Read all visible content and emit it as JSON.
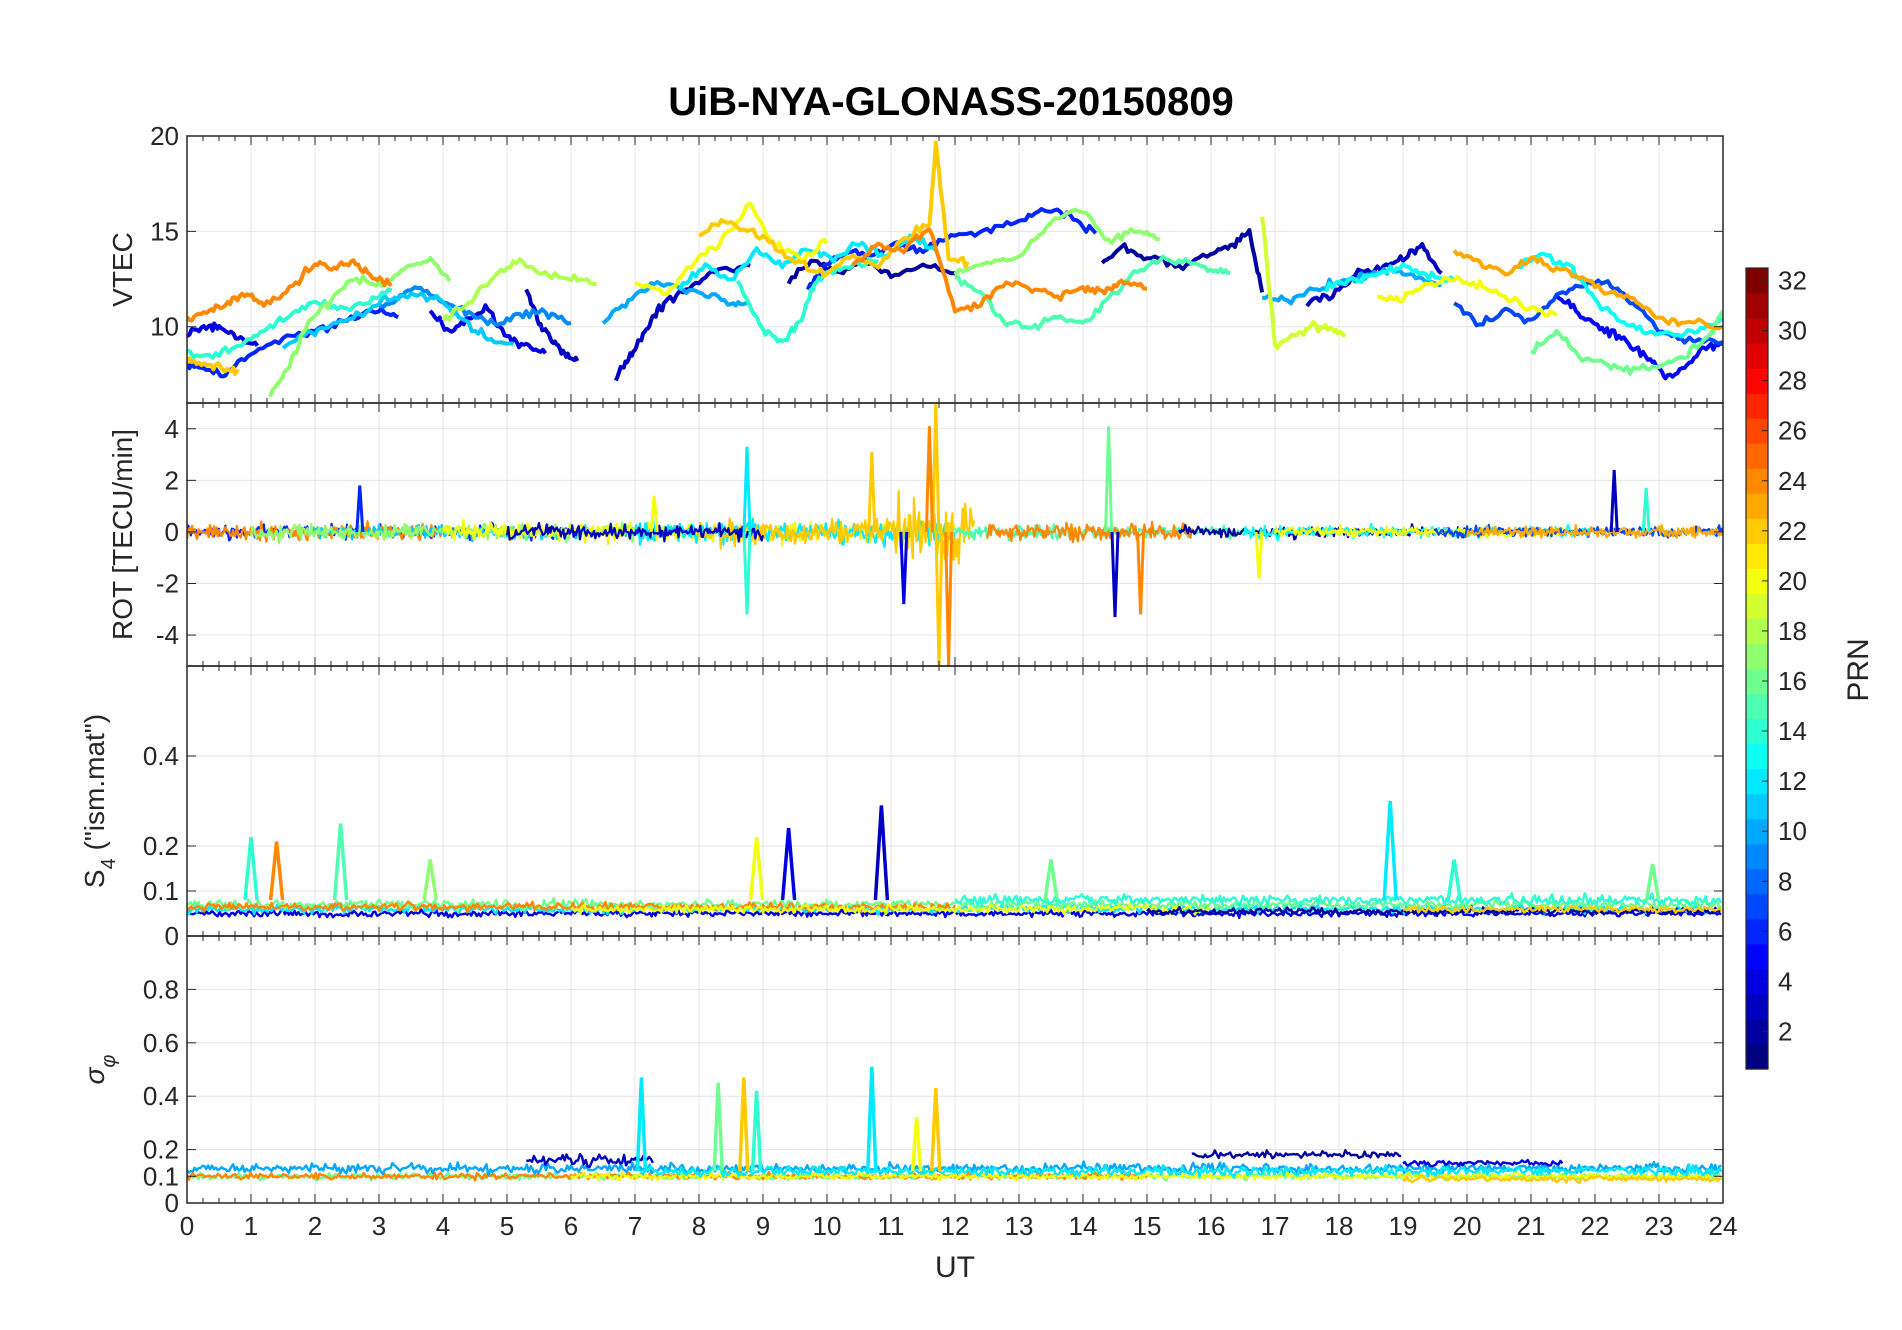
{
  "title": "UiB-NYA-GLONASS-20150809",
  "chart_data": [
    {
      "type": "line",
      "panel": "vtec",
      "ylabel": "VTEC",
      "ylim": [
        6,
        20
      ],
      "yticks": [
        10,
        15,
        20
      ],
      "xlim": [
        0,
        24
      ],
      "grid": true,
      "series": [
        {
          "prn": 2,
          "x": [
            9.4,
            9.8,
            10.2,
            10.6,
            11.0,
            11.5,
            12.0
          ],
          "y": [
            12.5,
            13.5,
            12.8,
            13.5,
            12.6,
            13.2,
            12.8
          ]
        },
        {
          "prn": 2,
          "x": [
            14.3,
            14.6,
            15.0,
            15.5,
            16.0,
            16.3,
            16.6,
            16.8
          ],
          "y": [
            13.2,
            14.2,
            13.6,
            13.2,
            13.9,
            14.2,
            15.0,
            11.8
          ]
        },
        {
          "prn": 3,
          "x": [
            5.3,
            5.5,
            5.7,
            5.9,
            6.1
          ],
          "y": [
            12.0,
            10.2,
            9.3,
            8.6,
            8.2
          ]
        },
        {
          "prn": 3,
          "x": [
            6.7,
            6.9,
            7.1,
            7.3,
            7.5,
            7.9,
            8.3,
            8.8
          ],
          "y": [
            7.4,
            8.3,
            9.4,
            10.6,
            11.3,
            12.2,
            13.0,
            13.2
          ]
        },
        {
          "prn": 3,
          "x": [
            17.5,
            17.9,
            18.3,
            18.7,
            19.0,
            19.3,
            19.6
          ],
          "y": [
            11.2,
            11.6,
            12.8,
            13.1,
            13.6,
            14.2,
            12.8
          ]
        },
        {
          "prn": 4,
          "x": [
            0.0,
            0.3,
            0.5,
            0.8,
            1.1
          ],
          "y": [
            9.7,
            9.9,
            10.1,
            9.5,
            9.0
          ]
        },
        {
          "prn": 4,
          "x": [
            3.8,
            4.1,
            4.4,
            4.7,
            5.0,
            5.3,
            5.6
          ],
          "y": [
            10.8,
            9.7,
            10.4,
            11.0,
            9.4,
            9.0,
            8.6
          ]
        },
        {
          "prn": 5,
          "x": [
            21.4,
            21.7,
            22.0,
            22.3,
            22.6,
            22.9,
            23.1,
            23.4,
            23.7,
            24.0
          ],
          "y": [
            11.6,
            10.8,
            10.2,
            9.6,
            8.9,
            8.2,
            7.3,
            7.9,
            8.8,
            9.1
          ]
        },
        {
          "prn": 6,
          "x": [
            0.0,
            0.3,
            0.6,
            1.0,
            1.5,
            2.0,
            2.5,
            3.0,
            3.3
          ],
          "y": [
            8.0,
            7.8,
            7.5,
            8.6,
            9.4,
            9.8,
            10.4,
            10.8,
            10.5
          ]
        },
        {
          "prn": 6,
          "x": [
            9.7,
            10.0,
            10.3,
            10.7,
            11.1,
            11.5,
            12.0,
            12.5,
            13.0,
            13.4,
            13.8,
            14.2
          ],
          "y": [
            12.0,
            13.3,
            14.0,
            13.6,
            14.3,
            13.9,
            14.8,
            15.0,
            15.5,
            16.2,
            15.8,
            14.9
          ]
        },
        {
          "prn": 7,
          "x": [
            19.8,
            20.2,
            20.6,
            21.0,
            21.4,
            21.8,
            22.2,
            22.6,
            23.0,
            23.4,
            24.0
          ],
          "y": [
            11.2,
            10.1,
            10.8,
            10.4,
            11.6,
            12.2,
            12.4,
            11.2,
            9.8,
            9.4,
            9.2
          ]
        },
        {
          "prn": 9,
          "x": [
            3.0,
            3.3,
            3.6,
            4.0,
            4.4,
            4.8,
            5.2,
            5.6,
            6.0
          ],
          "y": [
            11.0,
            11.5,
            12.1,
            11.3,
            10.8,
            10.1,
            10.6,
            10.8,
            10.2
          ]
        },
        {
          "prn": 10,
          "x": [
            6.5,
            6.9,
            7.3,
            7.7,
            8.1,
            8.5,
            8.8
          ],
          "y": [
            10.3,
            11.4,
            12.3,
            12.0,
            11.8,
            11.2,
            11.3
          ]
        },
        {
          "prn": 10,
          "x": [
            16.8,
            17.2,
            17.6,
            18.0,
            18.4,
            18.8,
            19.2,
            19.6
          ],
          "y": [
            11.6,
            11.3,
            12.0,
            12.3,
            12.6,
            13.0,
            12.6,
            12.2
          ]
        },
        {
          "prn": 11,
          "x": [
            1.5,
            1.9,
            2.3,
            2.7,
            3.1,
            3.5,
            3.9,
            4.3,
            4.7,
            5.1
          ],
          "y": [
            9.0,
            9.6,
            10.1,
            10.6,
            11.4,
            11.7,
            11.5,
            10.4,
            9.4,
            9.1
          ]
        },
        {
          "prn": 12,
          "x": [
            7.7,
            8.1,
            8.5,
            8.9,
            9.3,
            9.7,
            10.1,
            10.5,
            10.9,
            11.3,
            11.7
          ],
          "y": [
            12.0,
            13.2,
            12.4,
            14.0,
            13.2,
            14.1,
            13.5,
            14.4,
            13.6,
            14.8,
            14.0
          ]
        },
        {
          "prn": 13,
          "x": [
            17.8,
            18.2,
            18.6,
            19.0,
            19.4,
            19.8
          ],
          "y": [
            12.0,
            12.4,
            12.8,
            13.2,
            12.7,
            12.4
          ]
        },
        {
          "prn": 13,
          "x": [
            20.8,
            21.2,
            21.6,
            22.0,
            22.4,
            22.8,
            23.2,
            23.6,
            24.0
          ],
          "y": [
            13.1,
            13.8,
            13.2,
            11.4,
            10.2,
            9.8,
            9.6,
            9.8,
            10.4
          ]
        },
        {
          "prn": 14,
          "x": [
            0.0,
            0.4,
            0.8,
            1.2,
            1.6,
            2.0,
            2.4,
            2.8,
            3.2
          ],
          "y": [
            8.7,
            8.4,
            9.0,
            9.8,
            10.5,
            11.4,
            10.9,
            11.2,
            11.9
          ]
        },
        {
          "prn": 14,
          "x": [
            8.6,
            9.0,
            9.3,
            9.6,
            9.8,
            10.0,
            10.4,
            10.8
          ],
          "y": [
            12.3,
            9.8,
            9.2,
            10.4,
            12.2,
            12.8,
            13.2,
            13.4
          ]
        },
        {
          "prn": 15,
          "x": [
            12.0,
            12.4,
            12.8,
            13.2,
            13.6,
            14.0,
            14.4,
            14.8,
            15.2,
            15.6,
            16.0,
            16.3
          ],
          "y": [
            12.6,
            11.8,
            10.2,
            10.0,
            10.6,
            10.2,
            11.4,
            12.8,
            13.6,
            13.4,
            13.0,
            12.8
          ]
        },
        {
          "prn": 16,
          "x": [
            21.0,
            21.4,
            21.8,
            22.2,
            22.6,
            23.0,
            23.4,
            23.8,
            24.0
          ],
          "y": [
            8.6,
            9.8,
            8.4,
            8.0,
            7.7,
            8.0,
            8.4,
            9.6,
            10.8
          ]
        },
        {
          "prn": 17,
          "x": [
            1.3,
            1.6,
            1.9,
            2.2,
            2.6,
            3.0,
            3.4,
            3.8,
            4.1
          ],
          "y": [
            6.4,
            8.0,
            10.3,
            11.2,
            12.6,
            12.1,
            13.0,
            13.6,
            12.4
          ]
        },
        {
          "prn": 17,
          "x": [
            12.0,
            12.5,
            13.0,
            13.5,
            14.0,
            14.4,
            14.8,
            15.2
          ],
          "y": [
            12.8,
            13.4,
            13.6,
            15.6,
            16.2,
            14.4,
            15.0,
            14.6
          ]
        },
        {
          "prn": 18,
          "x": [
            4.0,
            4.4,
            4.8,
            5.2,
            5.6,
            6.0,
            6.4
          ],
          "y": [
            10.3,
            11.2,
            12.6,
            13.4,
            12.7,
            12.6,
            12.2
          ]
        },
        {
          "prn": 19,
          "x": [
            16.8,
            17.0,
            17.3,
            17.6,
            17.9,
            18.1
          ],
          "y": [
            15.9,
            9.0,
            9.5,
            10.1,
            9.9,
            9.6
          ]
        },
        {
          "prn": 20,
          "x": [
            7.0,
            7.5,
            8.0,
            8.4,
            8.8,
            9.2,
            9.6,
            10.0
          ],
          "y": [
            12.2,
            11.8,
            13.6,
            14.6,
            16.4,
            14.2,
            13.6,
            14.4
          ]
        },
        {
          "prn": 20,
          "x": [
            18.6,
            19.0,
            19.4,
            19.8,
            20.2,
            20.6,
            21.0,
            21.4
          ],
          "y": [
            11.4,
            11.6,
            12.2,
            12.6,
            12.1,
            11.6,
            11.0,
            10.6
          ]
        },
        {
          "prn": 22,
          "x": [
            0.0,
            0.3,
            0.6,
            0.8
          ],
          "y": [
            8.2,
            8.0,
            7.8,
            7.6
          ]
        },
        {
          "prn": 22,
          "x": [
            8.0,
            8.4,
            8.8,
            9.2,
            9.6,
            10.0,
            10.4,
            10.8,
            11.2,
            11.6,
            11.7,
            11.9,
            12.2
          ],
          "y": [
            14.8,
            15.6,
            15.0,
            14.2,
            13.2,
            12.8,
            13.8,
            13.2,
            14.6,
            15.4,
            19.6,
            13.6,
            13.4
          ]
        },
        {
          "prn": 23,
          "x": [
            19.8,
            20.2,
            20.6,
            21.0,
            21.4,
            21.8,
            22.2,
            22.6,
            23.0,
            23.4,
            24.0
          ],
          "y": [
            14.0,
            13.4,
            12.8,
            13.6,
            13.0,
            12.6,
            11.8,
            11.4,
            10.4,
            10.2,
            10.0
          ]
        },
        {
          "prn": 24,
          "x": [
            0.0,
            0.3,
            0.6,
            0.9,
            1.2,
            1.6,
            2.0,
            2.3,
            2.6,
            2.9,
            3.2
          ],
          "y": [
            10.4,
            10.8,
            11.1,
            11.8,
            11.2,
            11.9,
            13.3,
            13.1,
            13.4,
            12.6,
            12.2
          ]
        },
        {
          "prn": 24,
          "x": [
            10.4,
            10.8,
            11.2,
            11.6,
            12.0,
            12.4,
            12.8,
            13.2,
            13.6,
            14.0,
            14.3,
            14.6,
            15.0
          ],
          "y": [
            13.2,
            14.4,
            14.0,
            15.2,
            10.8,
            11.2,
            12.4,
            12.0,
            11.6,
            12.0,
            11.8,
            12.4,
            12.0
          ]
        }
      ]
    },
    {
      "type": "line",
      "panel": "rot",
      "ylabel": "ROT [TECU/min]",
      "ylim": [
        -5.2,
        5
      ],
      "yticks": [
        -4,
        -2,
        0,
        2,
        4
      ],
      "xlim": [
        0,
        24
      ],
      "grid": true,
      "spikes": [
        {
          "prn": 6,
          "x": 2.7,
          "y": 1.8
        },
        {
          "prn": 20,
          "x": 7.3,
          "y": 1.4
        },
        {
          "prn": 12,
          "x": 8.75,
          "y": 3.3
        },
        {
          "prn": 14,
          "x": 8.75,
          "y": -3.2
        },
        {
          "prn": 22,
          "x": 10.7,
          "y": 3.1
        },
        {
          "prn": 4,
          "x": 11.2,
          "y": -2.8
        },
        {
          "prn": 22,
          "x": 11.7,
          "y": 5.0
        },
        {
          "prn": 22,
          "x": 11.75,
          "y": -5.2
        },
        {
          "prn": 24,
          "x": 11.9,
          "y": -5.2
        },
        {
          "prn": 24,
          "x": 11.6,
          "y": 4.1
        },
        {
          "prn": 16,
          "x": 14.4,
          "y": 4.1
        },
        {
          "prn": 3,
          "x": 14.5,
          "y": -3.3
        },
        {
          "prn": 24,
          "x": 14.9,
          "y": -3.2
        },
        {
          "prn": 20,
          "x": 16.75,
          "y": -1.8
        },
        {
          "prn": 3,
          "x": 22.3,
          "y": 2.4
        },
        {
          "prn": 14,
          "x": 22.8,
          "y": 1.7
        }
      ]
    },
    {
      "type": "line",
      "panel": "s4",
      "ylabel": "S4 (\"ism.mat\")",
      "ylabel_main": "S",
      "ylabel_sub": "4",
      "ylabel_rest": " (\"ism.mat\")",
      "ylim": [
        0,
        0.6
      ],
      "yticks": [
        0,
        0.1,
        0.2,
        0.4
      ],
      "xlim": [
        0,
        24
      ],
      "grid": true,
      "peaks": [
        {
          "prn": 14,
          "x": 1.0,
          "y": 0.22
        },
        {
          "prn": 24,
          "x": 1.4,
          "y": 0.21
        },
        {
          "prn": 15,
          "x": 2.4,
          "y": 0.25
        },
        {
          "prn": 17,
          "x": 3.8,
          "y": 0.17
        },
        {
          "prn": 20,
          "x": 8.9,
          "y": 0.22
        },
        {
          "prn": 4,
          "x": 9.4,
          "y": 0.24
        },
        {
          "prn": 3,
          "x": 10.85,
          "y": 0.29
        },
        {
          "prn": 16,
          "x": 13.5,
          "y": 0.17
        },
        {
          "prn": 12,
          "x": 18.8,
          "y": 0.3
        },
        {
          "prn": 14,
          "x": 19.8,
          "y": 0.17
        },
        {
          "prn": 16,
          "x": 22.9,
          "y": 0.16
        }
      ]
    },
    {
      "type": "line",
      "panel": "sigma",
      "ylabel": "σφ",
      "ylabel_main": "σ",
      "ylabel_sub": "φ",
      "ylim": [
        0,
        1
      ],
      "yticks": [
        0,
        0.1,
        0.2,
        0.4,
        0.6,
        0.8
      ],
      "xlim": [
        0,
        24
      ],
      "xlabel": "UT",
      "xticks": [
        0,
        1,
        2,
        3,
        4,
        5,
        6,
        7,
        8,
        9,
        10,
        11,
        12,
        13,
        14,
        15,
        16,
        17,
        18,
        19,
        20,
        21,
        22,
        23,
        24
      ],
      "grid": true,
      "peaks": [
        {
          "prn": 12,
          "x": 7.1,
          "y": 0.47
        },
        {
          "prn": 16,
          "x": 8.3,
          "y": 0.45
        },
        {
          "prn": 22,
          "x": 8.7,
          "y": 0.47
        },
        {
          "prn": 14,
          "x": 8.9,
          "y": 0.42
        },
        {
          "prn": 12,
          "x": 10.7,
          "y": 0.51
        },
        {
          "prn": 22,
          "x": 11.7,
          "y": 0.43
        },
        {
          "prn": 20,
          "x": 11.4,
          "y": 0.32
        }
      ]
    }
  ],
  "colorbar": {
    "label": "PRN",
    "min": 1,
    "max": 32,
    "ticks": [
      2,
      4,
      6,
      8,
      10,
      12,
      14,
      16,
      18,
      20,
      22,
      24,
      26,
      28,
      30,
      32
    ],
    "colormap": "jet"
  }
}
